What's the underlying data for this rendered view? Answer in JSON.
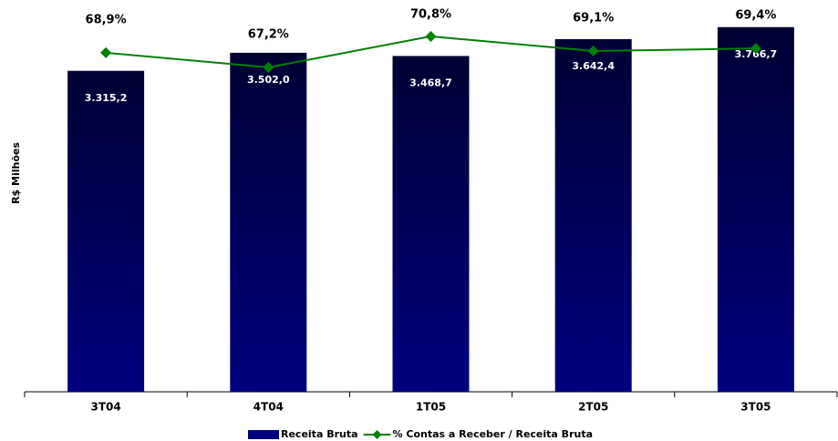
{
  "chart_data": {
    "type": "bar",
    "y_label": "R$ Milhões",
    "categories": [
      "3T04",
      "4T04",
      "1T05",
      "2T05",
      "3T05"
    ],
    "series": [
      {
        "name": "Receita Bruta",
        "type": "bar",
        "color": "#000080",
        "values": [
          3315.2,
          3502.0,
          3468.7,
          3642.4,
          3766.7
        ],
        "value_labels": [
          "3.315,2",
          "3.502,0",
          "3.468,7",
          "3.642,4",
          "3.766,7"
        ]
      },
      {
        "name": "% Contas a Receber / Receita Bruta",
        "type": "line",
        "axis": "y2",
        "color": "#008000",
        "values": [
          68.9,
          67.2,
          70.8,
          69.1,
          69.4
        ],
        "value_labels": [
          "68,9%",
          "67,2%",
          "70,8%",
          "69,1%",
          "69,4%"
        ]
      }
    ],
    "ylim": [
      0,
      4000
    ],
    "y2lim": [
      29.5,
      74.5
    ]
  }
}
